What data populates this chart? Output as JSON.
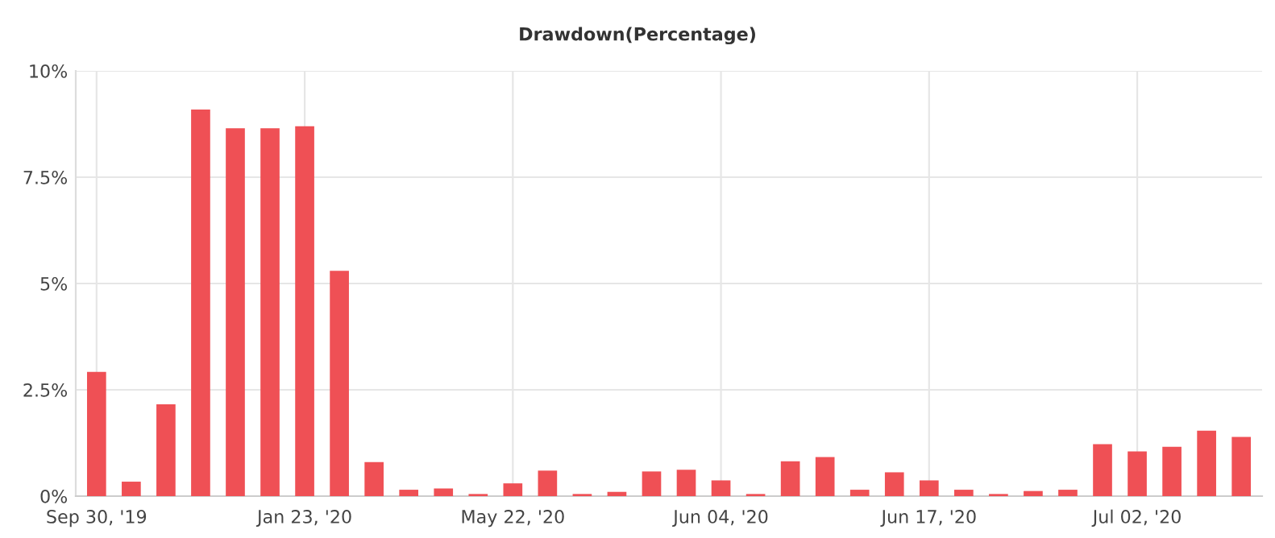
{
  "chart_data": {
    "type": "bar",
    "title": "Drawdown(Percentage)",
    "categories": [
      "Sep 30, '19",
      null,
      null,
      null,
      null,
      null,
      "Jan 23, '20",
      null,
      null,
      null,
      null,
      null,
      "May 22, '20",
      null,
      null,
      null,
      null,
      null,
      "Jun 04, '20",
      null,
      null,
      null,
      null,
      null,
      "Jun 17, '20",
      null,
      null,
      null,
      null,
      null,
      "Jul 02, '20",
      null,
      null,
      null
    ],
    "values": [
      2.92,
      0.34,
      2.16,
      9.09,
      8.65,
      8.65,
      8.7,
      5.3,
      0.8,
      0.15,
      0.18,
      0.05,
      0.3,
      0.6,
      0.05,
      0.1,
      0.58,
      0.62,
      0.37,
      0.05,
      0.82,
      0.92,
      0.15,
      0.56,
      0.37,
      0.15,
      0.05,
      0.12,
      0.15,
      1.22,
      1.05,
      1.16,
      1.54,
      1.39
    ],
    "color": "#ef5055",
    "ylim": [
      0,
      10
    ],
    "yticks": [
      {
        "value": 0,
        "label": "0%"
      },
      {
        "value": 2.5,
        "label": "2.5%"
      },
      {
        "value": 5,
        "label": "5%"
      },
      {
        "value": 7.5,
        "label": "7.5%"
      },
      {
        "value": 10,
        "label": "10%"
      }
    ],
    "grid": true
  }
}
